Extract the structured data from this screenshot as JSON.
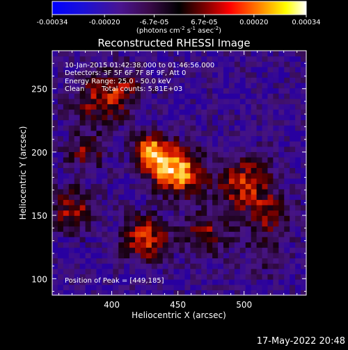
{
  "colorbar": {
    "ticks": [
      "-0.00034",
      "-0.00020",
      "-6.7e-05",
      "6.7e-05",
      "0.00020",
      "0.00034"
    ],
    "tick_values": [
      -0.00034,
      -0.0002,
      -6.7e-05,
      6.7e-05,
      0.0002,
      0.00034
    ],
    "range": [
      -0.00034,
      0.00034
    ],
    "units_main": "(photons cm",
    "units_exp1": "-2",
    "units_mid": " s",
    "units_exp2": "-1",
    "units_tail": " asec",
    "units_exp3": "-2",
    "units_close": ")"
  },
  "timestamp": "17-May-2022 20:48",
  "chart_data": {
    "type": "heatmap",
    "title": "Reconstructed RHESSI Image",
    "xlabel": "Heliocentric X (arcsec)",
    "ylabel": "Heliocentric Y (arcsec)",
    "xlim": [
      355,
      547
    ],
    "ylim": [
      87,
      280
    ],
    "x_ticks": [
      "400",
      "450",
      "500"
    ],
    "x_tick_values": [
      400,
      450,
      500
    ],
    "y_ticks": [
      "100",
      "150",
      "200",
      "250"
    ],
    "y_tick_values": [
      100,
      150,
      200,
      250
    ],
    "colormap": "rhessi blue-purple-red-yellow-white",
    "annotations": {
      "time_range": "10-Jan-2015 01:42:38.000 to 01:46:56.000",
      "detectors": "Detectors: 3F 5F 6F 7F 8F 9F, Att 0",
      "energy": "Energy Range: 25.0 - 50.0 keV",
      "clean_label": "Clean",
      "total_counts": "Total counts: 5.81E+03",
      "peak": "Position of Peak = [449,185]"
    },
    "peak_position": [
      449,
      185
    ],
    "sources": [
      {
        "x": 449,
        "y": 185,
        "intensity": 1.0,
        "sigma": 13
      },
      {
        "x": 430,
        "y": 200,
        "intensity": 0.85,
        "sigma": 10
      },
      {
        "x": 425,
        "y": 132,
        "intensity": 0.72,
        "sigma": 12
      },
      {
        "x": 370,
        "y": 155,
        "intensity": 0.55,
        "sigma": 12
      },
      {
        "x": 500,
        "y": 175,
        "intensity": 0.6,
        "sigma": 16
      },
      {
        "x": 390,
        "y": 240,
        "intensity": 0.5,
        "sigma": 14
      },
      {
        "x": 470,
        "y": 135,
        "intensity": 0.5,
        "sigma": 12
      },
      {
        "x": 520,
        "y": 150,
        "intensity": 0.4,
        "sigma": 12
      },
      {
        "x": 410,
        "y": 250,
        "intensity": 0.4,
        "sigma": 12
      },
      {
        "x": 380,
        "y": 200,
        "intensity": 0.45,
        "sigma": 10
      },
      {
        "x": 515,
        "y": 120,
        "intensity": 0.25,
        "sigma": 12
      }
    ]
  }
}
